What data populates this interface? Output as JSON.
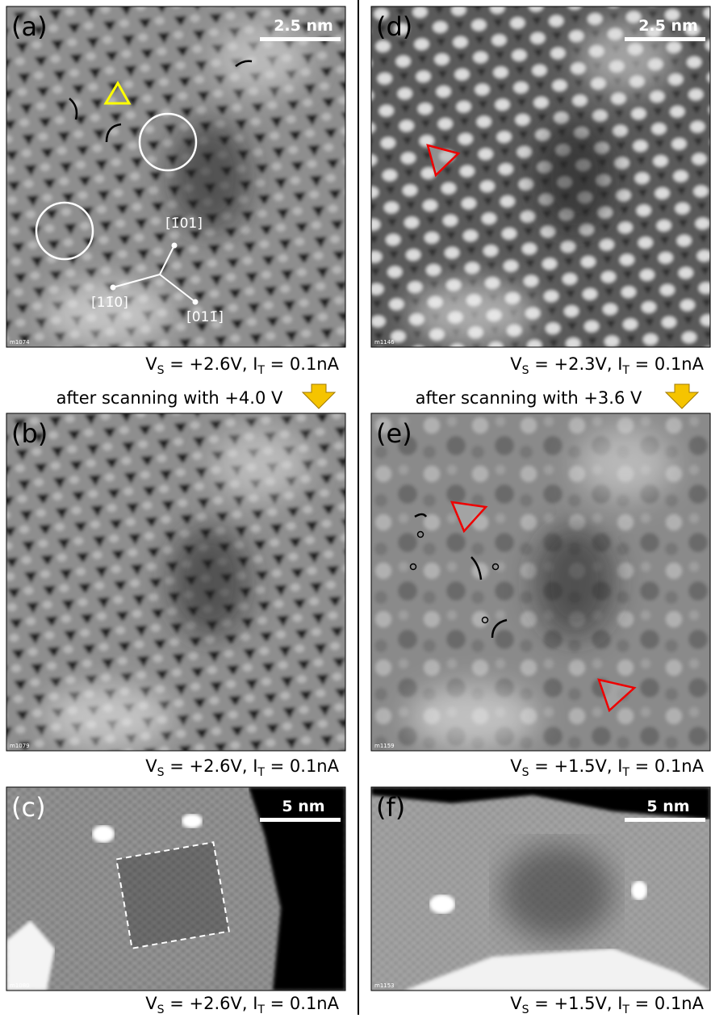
{
  "panels": [
    {
      "label": "(a)",
      "scale_bar": "2.5 nm",
      "image_id": "m1074",
      "caption": [
        "V",
        "S",
        " = +2.6V, I",
        "T",
        " = 0.1nA"
      ]
    },
    {
      "label": "(b)",
      "image_id": "m1079",
      "caption": [
        "V",
        "S",
        " = +2.6V, I",
        "T",
        " = 0.1nA"
      ]
    },
    {
      "label": "(c)",
      "scale_bar": "5 nm",
      "image_id": "m1080",
      "caption": [
        "V",
        "S",
        " = +2.6V, I",
        "T",
        " = 0.1nA"
      ]
    },
    {
      "label": "(d)",
      "scale_bar": "2.5 nm",
      "image_id": "m1146",
      "caption": [
        "V",
        "S",
        " = +2.3V, I",
        "T",
        " = 0.1nA"
      ]
    },
    {
      "label": "(e)",
      "image_id": "m1159",
      "caption": [
        "V",
        "S",
        " = +1.5V, I",
        "T",
        " = 0.1nA"
      ]
    },
    {
      "label": "(f)",
      "scale_bar": "5 nm",
      "image_id": "m1153",
      "caption": [
        "V",
        "S",
        " = +1.5V, I",
        "T",
        " = 0.1nA"
      ]
    }
  ],
  "directions": [
    "[1̄01]",
    "[11̄0]",
    "[011̄]"
  ],
  "transitions": [
    "after scanning with +4.0 V",
    "after scanning with +3.6 V"
  ]
}
